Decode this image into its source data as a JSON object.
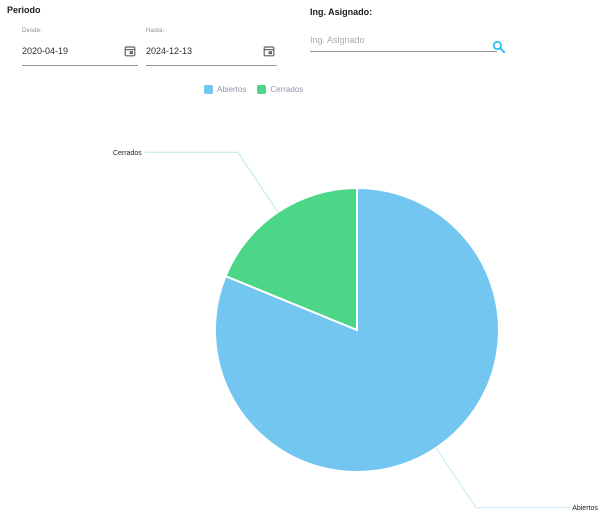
{
  "filters": {
    "periodo_title": "Periodo",
    "desde": {
      "label": "Desde:",
      "value": "2020-04-19"
    },
    "hasta": {
      "label": "Hasta:",
      "value": "2024-12-13"
    },
    "asignado": {
      "title": "Ing. Asignado:",
      "placeholder": "Ing. Asignado"
    }
  },
  "icons": {
    "calendar": "calendar-icon",
    "search": "search-icon",
    "search_color": "#17bdf0",
    "calendar_color": "#5f6368"
  },
  "chart_data": {
    "type": "pie",
    "title": "",
    "categories": [
      "Abiertos",
      "Cerrados"
    ],
    "values": [
      81.2,
      18.8
    ],
    "colors": [
      "#72c6ef",
      "#4cd687"
    ],
    "legend": {
      "position": "top",
      "entries": [
        "Abiertos",
        "Cerrados"
      ]
    },
    "start_angle": "12 o'clock",
    "direction": "clockwise",
    "outside_labels": true,
    "leader_line_opacity": 0.4
  }
}
